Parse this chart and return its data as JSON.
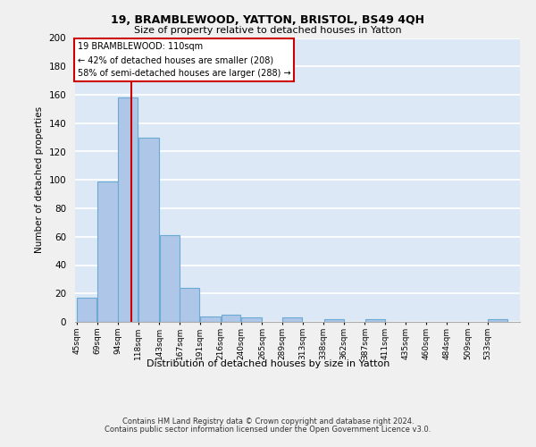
{
  "title1": "19, BRAMBLEWOOD, YATTON, BRISTOL, BS49 4QH",
  "title2": "Size of property relative to detached houses in Yatton",
  "xlabel": "Distribution of detached houses by size in Yatton",
  "ylabel": "Number of detached properties",
  "bin_labels": [
    "45sqm",
    "69sqm",
    "94sqm",
    "118sqm",
    "143sqm",
    "167sqm",
    "191sqm",
    "216sqm",
    "240sqm",
    "265sqm",
    "289sqm",
    "313sqm",
    "338sqm",
    "362sqm",
    "387sqm",
    "411sqm",
    "435sqm",
    "460sqm",
    "484sqm",
    "509sqm",
    "533sqm"
  ],
  "bin_edges": [
    45,
    69,
    94,
    118,
    143,
    167,
    191,
    216,
    240,
    265,
    289,
    313,
    338,
    362,
    387,
    411,
    435,
    460,
    484,
    509,
    533,
    557
  ],
  "values": [
    17,
    99,
    158,
    130,
    61,
    24,
    4,
    5,
    3,
    0,
    3,
    0,
    2,
    0,
    2,
    0,
    0,
    0,
    0,
    0,
    2
  ],
  "bar_color": "#aec6e8",
  "bar_edge_color": "#6aaad4",
  "property_size": 110,
  "vline_color": "#cc0000",
  "annotation_line1": "19 BRAMBLEWOOD: 110sqm",
  "annotation_line2": "← 42% of detached houses are smaller (208)",
  "annotation_line3": "58% of semi-detached houses are larger (288) →",
  "annotation_box_color": "#ffffff",
  "annotation_box_edge_color": "#cc0000",
  "ylim": [
    0,
    200
  ],
  "yticks": [
    0,
    20,
    40,
    60,
    80,
    100,
    120,
    140,
    160,
    180,
    200
  ],
  "background_color": "#dce8f5",
  "grid_color": "#ffffff",
  "footer1": "Contains HM Land Registry data © Crown copyright and database right 2024.",
  "footer2": "Contains public sector information licensed under the Open Government Licence v3.0."
}
